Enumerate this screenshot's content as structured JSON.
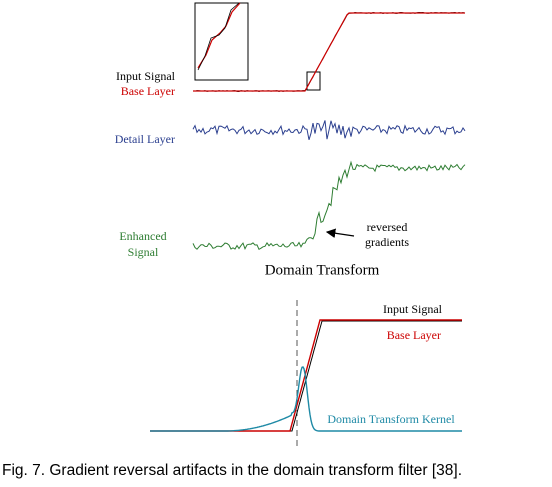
{
  "top_panel": {
    "input_label": "Input Signal",
    "base_label": "Base Layer",
    "detail_label": "Detail Layer",
    "enhanced_label": [
      "Enhanced",
      "Signal"
    ],
    "annotation": [
      "reversed",
      "gradients"
    ],
    "title": "Domain Transform"
  },
  "bottom_panel": {
    "input_label": "Input Signal",
    "base_label": "Base Layer",
    "kernel_label": "Domain Transform Kernel"
  },
  "caption": "Fig. 7. Gradient reversal artifacts in the domain transform filter [38]."
}
